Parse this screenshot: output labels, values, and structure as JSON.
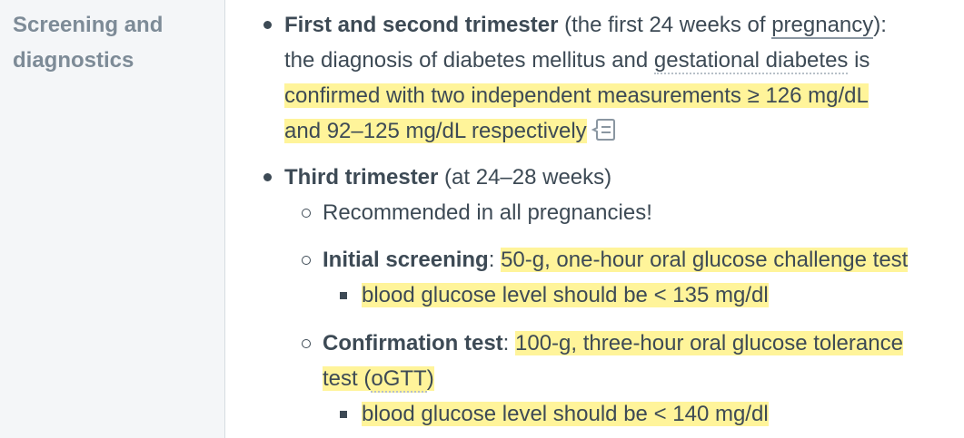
{
  "sidebar": {
    "section_title": "Screening and diagnostics"
  },
  "items": {
    "first": {
      "title": "First and second trimester",
      "paren_open": " (the first 24 weeks of ",
      "link_pregnancy": "pregnancy",
      "paren_close": "):",
      "line2_a": "the diagnosis of diabetes mellitus and ",
      "link_gd": "gestational diabetes",
      "line2_b": " is",
      "hl_line3": "confirmed with two independent measurements ≥ 126 mg/dL",
      "hl_line4": "and 92–125 mg/dL respectively"
    },
    "third": {
      "title": "Third trimester",
      "rest": " (at 24–28 weeks)",
      "sub1": "Recommended in all pregnancies!",
      "sub2_label": "Initial screening",
      "sub2_colon": ": ",
      "sub2_hl": "50-g, one-hour oral glucose challenge test",
      "sub2_child": "blood glucose level should be < 135 mg/dl",
      "sub3_label": "Confirmation test",
      "sub3_colon": ": ",
      "sub3_hl_a": "100-g, three-hour oral glucose tolerance",
      "sub3_hl_b": "test (",
      "sub3_abbr": "oGTT",
      "sub3_hl_c": ")",
      "sub3_child": "blood glucose level should be < 140 mg/dl"
    }
  },
  "colors": {
    "highlight": "#fff49a",
    "text": "#3d4a55",
    "sidebar_title": "#7d8b97"
  },
  "icons": {
    "note": "note-comment-icon"
  }
}
